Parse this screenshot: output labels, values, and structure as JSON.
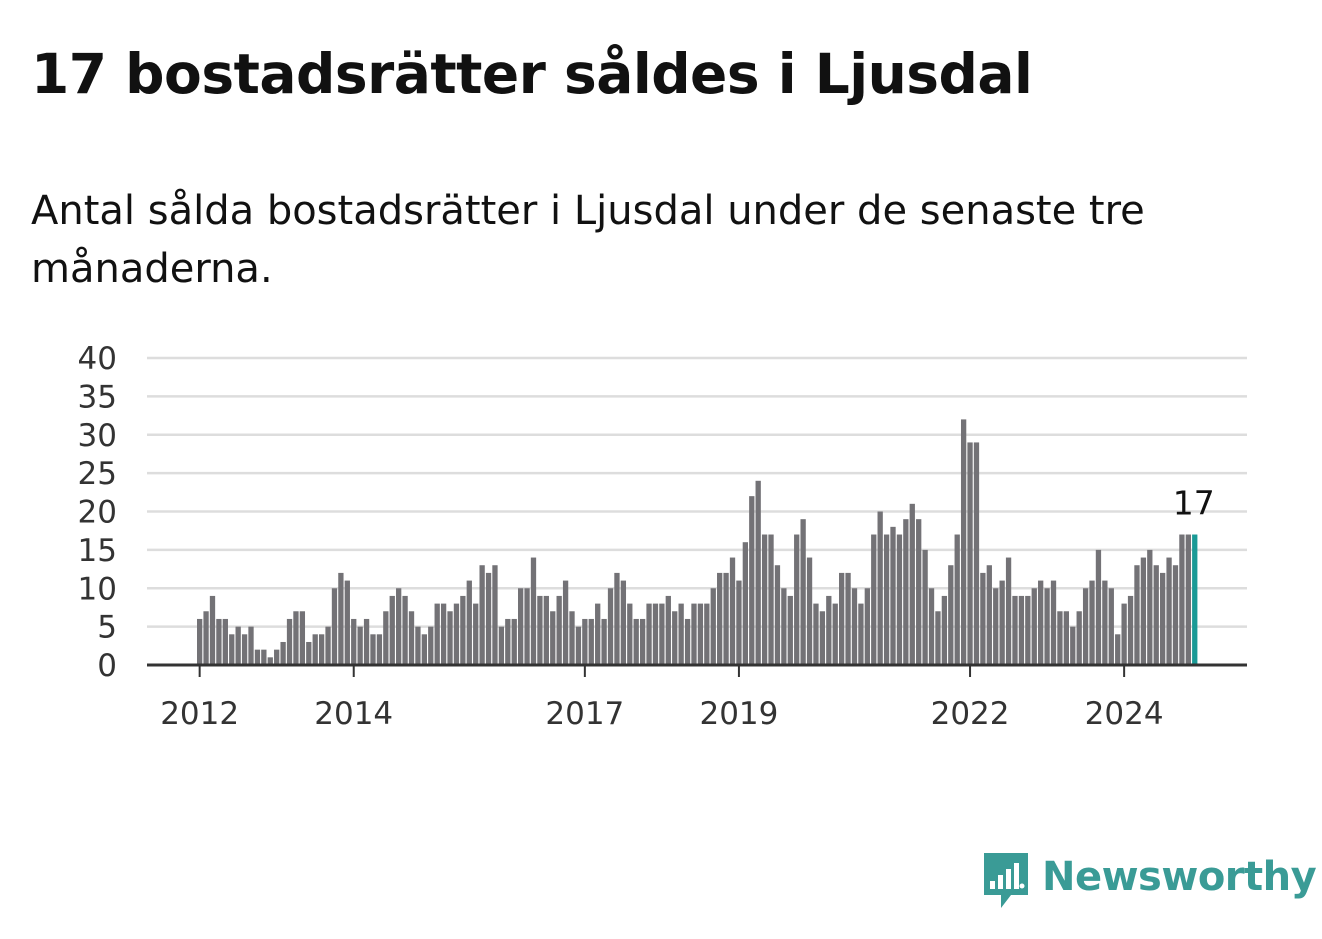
{
  "title": "17 bostadsrätter såldes i Ljusdal",
  "subtitle": "Antal sålda bostadsrätter i Ljusdal under de senaste tre månaderna.",
  "brand": {
    "name": "Newsworthy",
    "icon": "newsworthy-bar-chart-bubble-icon",
    "color": "#3a9b96"
  },
  "colors": {
    "bar": "#737276",
    "highlight": "#1a9a96",
    "grid": "#dddddd",
    "axis": "#333333"
  },
  "chart_data": {
    "type": "bar",
    "title": "17 bostadsrätter såldes i Ljusdal",
    "subtitle": "Antal sålda bostadsrätter i Ljusdal under de senaste tre månaderna.",
    "xlabel": "",
    "ylabel": "",
    "ylim": [
      0,
      40
    ],
    "yticks": [
      0,
      5,
      10,
      15,
      20,
      25,
      30,
      35,
      40
    ],
    "grid": true,
    "legend": "none",
    "start_month": "2012-01",
    "x_ticks": [
      "2012",
      "2014",
      "2017",
      "2019",
      "2022",
      "2024"
    ],
    "highlight_label": "17",
    "values": [
      6,
      7,
      9,
      6,
      6,
      4,
      5,
      4,
      5,
      2,
      2,
      1,
      2,
      3,
      6,
      7,
      7,
      3,
      4,
      4,
      5,
      10,
      12,
      11,
      6,
      5,
      6,
      4,
      4,
      7,
      9,
      10,
      9,
      7,
      5,
      4,
      5,
      8,
      8,
      7,
      8,
      9,
      11,
      8,
      13,
      12,
      13,
      5,
      6,
      6,
      10,
      10,
      14,
      9,
      9,
      7,
      9,
      11,
      7,
      5,
      6,
      6,
      8,
      6,
      10,
      12,
      11,
      8,
      6,
      6,
      8,
      8,
      8,
      9,
      7,
      8,
      6,
      8,
      8,
      8,
      10,
      12,
      12,
      14,
      11,
      16,
      22,
      24,
      17,
      17,
      13,
      10,
      9,
      17,
      19,
      14,
      8,
      7,
      9,
      8,
      12,
      12,
      10,
      8,
      10,
      17,
      20,
      17,
      18,
      17,
      19,
      21,
      19,
      15,
      10,
      7,
      9,
      13,
      17,
      32,
      29,
      29,
      12,
      13,
      10,
      11,
      14,
      9,
      9,
      9,
      10,
      11,
      10,
      11,
      7,
      7,
      5,
      7,
      10,
      11,
      15,
      11,
      10,
      4,
      8,
      9,
      13,
      14,
      15,
      13,
      12,
      14,
      13,
      17,
      17,
      17
    ]
  }
}
